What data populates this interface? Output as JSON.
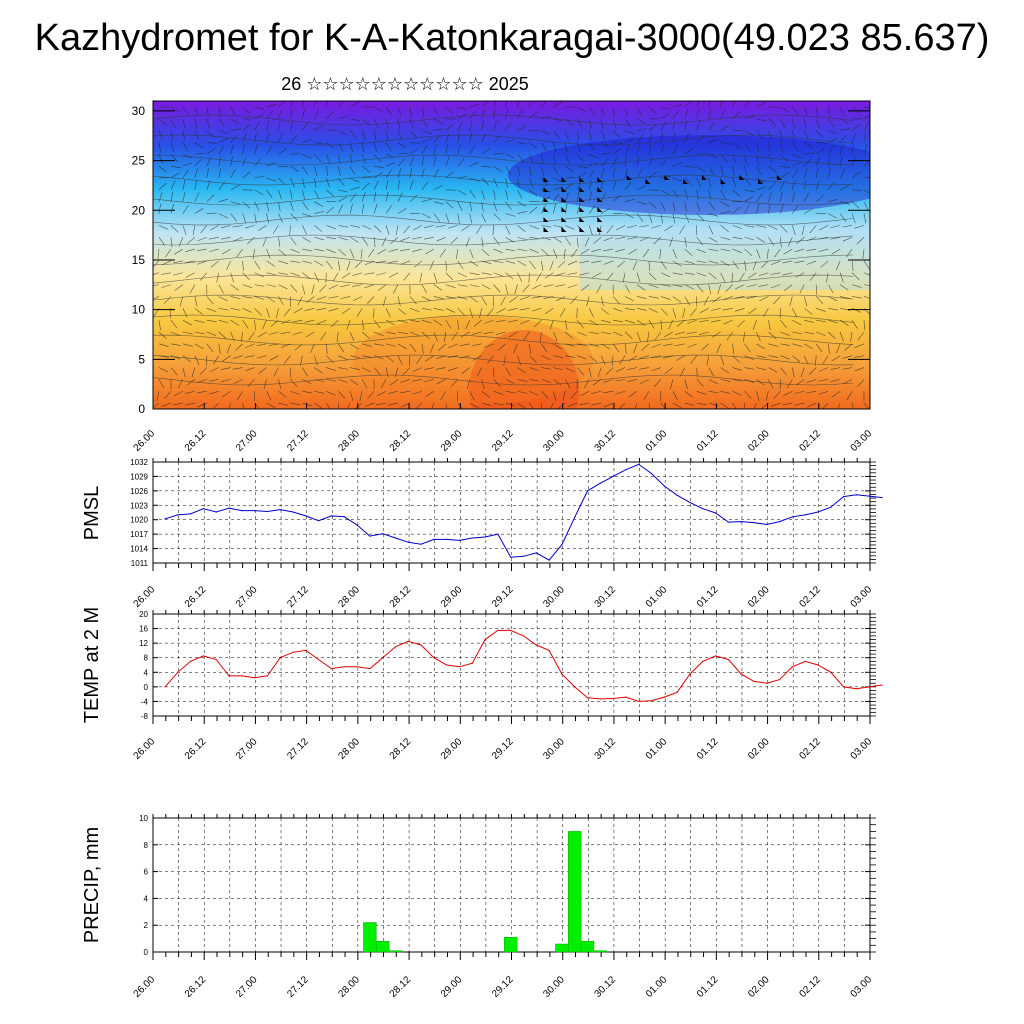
{
  "header": {
    "title": "Kazhydromet for K-A-Katonkaragai-3000(49.023 85.637)",
    "subtitle": "26 ☆☆☆☆☆☆☆☆☆☆☆ 2025"
  },
  "time_ticks": [
    "26.00",
    "26.12",
    "27.00",
    "27.12",
    "28.00",
    "28.12",
    "29.00",
    "29.12",
    "30.00",
    "30.12",
    "01.00",
    "01.12",
    "02.00",
    "02.12",
    "03.00"
  ],
  "colors": {
    "pmsl_line": "#0000cc",
    "temp_line": "#dd0000",
    "precip_bar": "#00ee00",
    "grid": "#000000"
  },
  "chart_data": [
    {
      "id": "cross-section",
      "type": "heatmap",
      "title": "",
      "xlabel": "",
      "ylabel": "",
      "ylim": [
        0,
        31
      ],
      "yticks": [
        0,
        5,
        10,
        15,
        20,
        25,
        30
      ],
      "color_scale": [
        "#7a1ae0",
        "#2850e6",
        "#29b8f2",
        "#bfe4f4",
        "#fbe69a",
        "#f8c840",
        "#f5a03a",
        "#f26a1e"
      ],
      "wind_barbs": true
    },
    {
      "id": "pmsl",
      "type": "line",
      "ylabel": "PMSL",
      "ylim": [
        1011,
        1032
      ],
      "yticks": [
        1011,
        1014,
        1017,
        1020,
        1023,
        1026,
        1029,
        1032
      ],
      "x": [
        0,
        3,
        6,
        9,
        12,
        15,
        18,
        21,
        24,
        27,
        30,
        33,
        36,
        39,
        42,
        45,
        48,
        51,
        54,
        57,
        60,
        63,
        66,
        69,
        72,
        75,
        78,
        81,
        84,
        87,
        90,
        93,
        96,
        99,
        102,
        105,
        108,
        111,
        114,
        117,
        120,
        123,
        126,
        129,
        132,
        135,
        138,
        141,
        144,
        147,
        150,
        153,
        156,
        159,
        162,
        165,
        168
      ],
      "values": [
        1020.2,
        1021.0,
        1021.2,
        1022.3,
        1021.6,
        1022.4,
        1021.9,
        1021.9,
        1021.7,
        1022.1,
        1021.6,
        1020.8,
        1019.8,
        1020.8,
        1020.6,
        1018.9,
        1016.6,
        1017.1,
        1016.2,
        1015.3,
        1014.9,
        1015.9,
        1015.9,
        1015.7,
        1016.2,
        1016.4,
        1017.0,
        1012.2,
        1012.4,
        1013.1,
        1011.6,
        1014.8,
        1020.5,
        1026.0,
        1027.6,
        1029.0,
        1030.4,
        1031.5,
        1029.6,
        1027.0,
        1025.1,
        1023.6,
        1022.3,
        1021.4,
        1019.5,
        1019.6,
        1019.4,
        1019.0,
        1019.6,
        1020.6,
        1021.0,
        1021.6,
        1022.6,
        1024.8,
        1025.2,
        1024.9,
        1024.6
      ]
    },
    {
      "id": "temp-2m",
      "type": "line",
      "ylabel": "TEMP at 2 M",
      "ylim": [
        -8,
        20
      ],
      "yticks": [
        -8,
        -4,
        0,
        4,
        8,
        12,
        16,
        20
      ],
      "x": [
        0,
        3,
        6,
        9,
        12,
        15,
        18,
        21,
        24,
        27,
        30,
        33,
        36,
        39,
        42,
        45,
        48,
        51,
        54,
        57,
        60,
        63,
        66,
        69,
        72,
        75,
        78,
        81,
        84,
        87,
        90,
        93,
        96,
        99,
        102,
        105,
        108,
        111,
        114,
        117,
        120,
        123,
        126,
        129,
        132,
        135,
        138,
        141,
        144,
        147,
        150,
        153,
        156,
        159,
        162,
        165,
        168
      ],
      "values": [
        0,
        4,
        7,
        8.5,
        7.5,
        3,
        3,
        2.5,
        3,
        8,
        9.5,
        10,
        7.5,
        5,
        5.5,
        5.5,
        5,
        8,
        11,
        12.5,
        11.5,
        8,
        6,
        5.5,
        6.5,
        13,
        15.5,
        15.5,
        14,
        11.5,
        10,
        3.5,
        0,
        -3,
        -3.3,
        -3.2,
        -2.8,
        -4,
        -3.8,
        -2.8,
        -1.5,
        3.5,
        7,
        8.5,
        7.5,
        3.5,
        1.5,
        1,
        2,
        5.5,
        7,
        6,
        4,
        0,
        -0.5,
        0,
        0.5
      ]
    },
    {
      "id": "precip",
      "type": "bar",
      "ylabel": "PRECIP, mm",
      "ylim": [
        0,
        10
      ],
      "yticks": [
        0,
        2,
        4,
        6,
        8,
        10
      ],
      "x": [
        48,
        51,
        54,
        81,
        93,
        96,
        99,
        102
      ],
      "values": [
        2.2,
        0.8,
        0.1,
        1.1,
        0.6,
        9.0,
        0.8,
        0.1
      ]
    }
  ]
}
